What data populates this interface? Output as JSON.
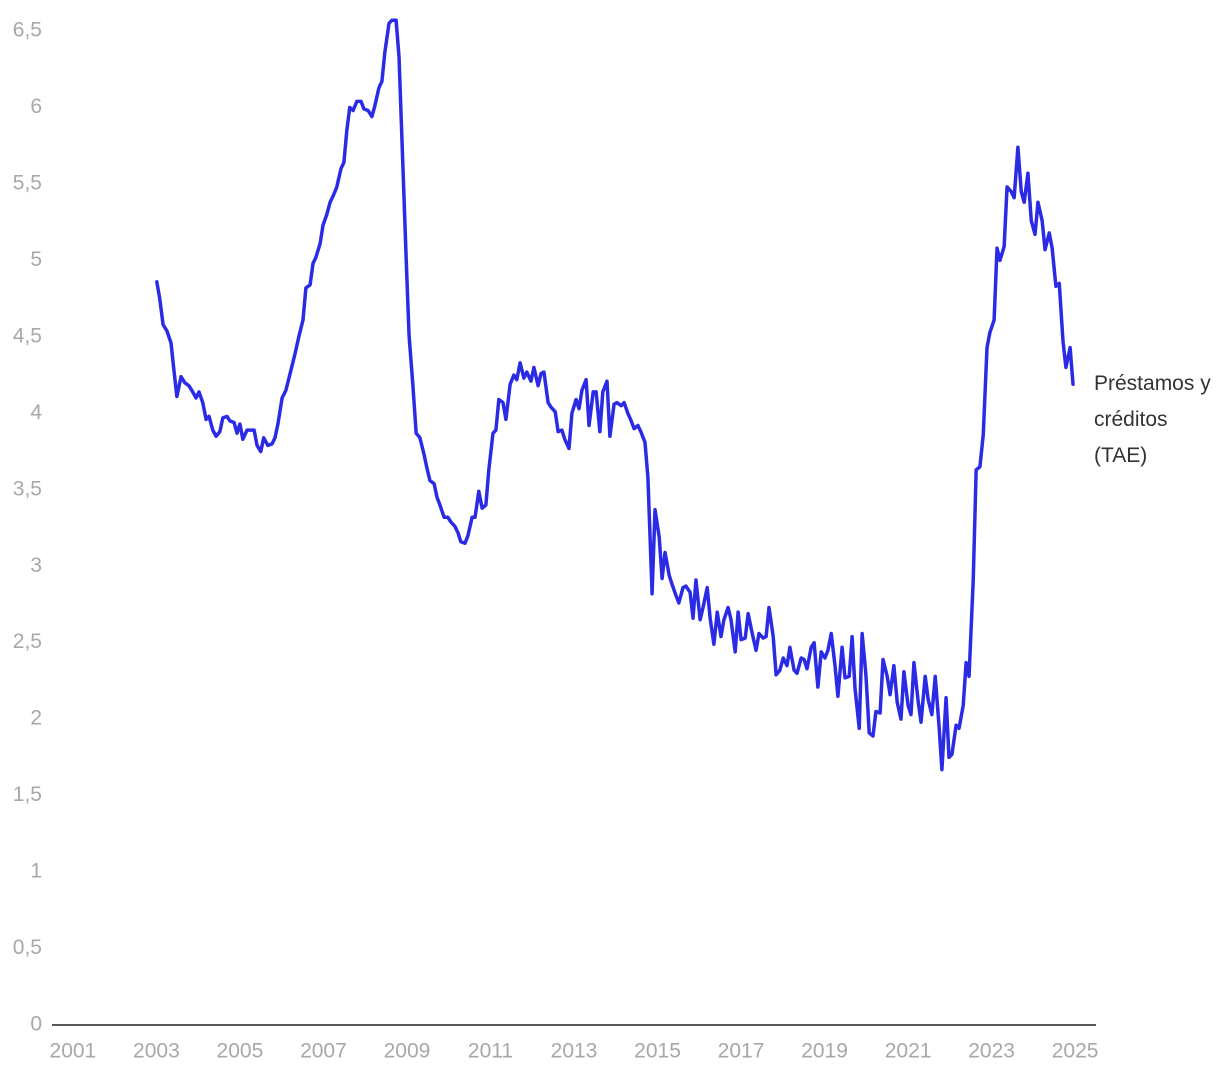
{
  "chart_data": {
    "type": "line",
    "series": [
      {
        "name": "Préstamos y créditos (TAE)",
        "color": "#2b2be6",
        "x": [
          2003.01,
          2003.08,
          2003.16,
          2003.25,
          2003.35,
          2003.42,
          2003.49,
          2003.59,
          2003.68,
          2003.78,
          2003.87,
          2003.95,
          2004.02,
          2004.11,
          2004.19,
          2004.26,
          2004.35,
          2004.43,
          2004.52,
          2004.59,
          2004.69,
          2004.76,
          2004.86,
          2004.93,
          2005.0,
          2005.07,
          2005.17,
          2005.34,
          2005.41,
          2005.5,
          2005.57,
          2005.67,
          2005.77,
          2005.84,
          2005.91,
          2006.01,
          2006.1,
          2006.22,
          2006.32,
          2006.41,
          2006.51,
          2006.58,
          2006.68,
          2006.75,
          2006.82,
          2006.92,
          2006.99,
          2007.08,
          2007.16,
          2007.23,
          2007.32,
          2007.42,
          2007.49,
          2007.56,
          2007.63,
          2007.71,
          2007.8,
          2007.9,
          2007.97,
          2008.07,
          2008.16,
          2008.23,
          2008.33,
          2008.4,
          2008.47,
          2008.57,
          2008.64,
          2008.74,
          2008.81,
          2008.88,
          2008.98,
          2009.05,
          2009.14,
          2009.22,
          2009.31,
          2009.41,
          2009.48,
          2009.55,
          2009.65,
          2009.72,
          2009.79,
          2009.89,
          2009.98,
          2010.05,
          2010.15,
          2010.22,
          2010.29,
          2010.39,
          2010.46,
          2010.56,
          2010.63,
          2010.72,
          2010.8,
          2010.89,
          2010.96,
          2011.06,
          2011.13,
          2011.2,
          2011.3,
          2011.37,
          2011.47,
          2011.56,
          2011.63,
          2011.71,
          2011.8,
          2011.87,
          2011.97,
          2012.04,
          2012.14,
          2012.21,
          2012.28,
          2012.38,
          2012.45,
          2012.55,
          2012.62,
          2012.71,
          2012.78,
          2012.88,
          2012.95,
          2013.05,
          2013.12,
          2013.19,
          2013.29,
          2013.36,
          2013.46,
          2013.53,
          2013.62,
          2013.69,
          2013.79,
          2013.86,
          2013.96,
          2014.03,
          2014.13,
          2014.2,
          2014.29,
          2014.37,
          2014.44,
          2014.53,
          2014.6,
          2014.7,
          2014.77,
          2014.87,
          2014.94,
          2015.04,
          2015.11,
          2015.18,
          2015.28,
          2015.35,
          2015.44,
          2015.51,
          2015.61,
          2015.68,
          2015.78,
          2015.85,
          2015.92,
          2016.02,
          2016.09,
          2016.19,
          2016.26,
          2016.35,
          2016.43,
          2016.52,
          2016.59,
          2016.69,
          2016.76,
          2016.86,
          2016.93,
          2017.0,
          2017.1,
          2017.17,
          2017.26,
          2017.36,
          2017.43,
          2017.53,
          2017.6,
          2017.67,
          2017.77,
          2017.84,
          2017.93,
          2018.01,
          2018.1,
          2018.17,
          2018.27,
          2018.34,
          2018.44,
          2018.51,
          2018.58,
          2018.68,
          2018.75,
          2018.84,
          2018.92,
          2019.01,
          2019.08,
          2019.16,
          2019.25,
          2019.32,
          2019.42,
          2019.49,
          2019.59,
          2019.66,
          2019.73,
          2019.83,
          2019.9,
          2019.99,
          2020.07,
          2020.16,
          2020.23,
          2020.33,
          2020.4,
          2020.5,
          2020.57,
          2020.66,
          2020.74,
          2020.83,
          2020.9,
          2021.0,
          2021.07,
          2021.14,
          2021.24,
          2021.31,
          2021.41,
          2021.48,
          2021.57,
          2021.65,
          2021.74,
          2021.81,
          2021.91,
          2021.98,
          2022.05,
          2022.15,
          2022.22,
          2022.32,
          2022.39,
          2022.46,
          2022.56,
          2022.63,
          2022.72,
          2022.8,
          2022.89,
          2022.96,
          2023.06,
          2023.13,
          2023.2,
          2023.3,
          2023.37,
          2023.47,
          2023.54,
          2023.63,
          2023.71,
          2023.78,
          2023.87,
          2023.95,
          2024.04,
          2024.11,
          2024.21,
          2024.28,
          2024.38,
          2024.45,
          2024.54,
          2024.62,
          2024.71,
          2024.78,
          2024.88,
          2024.95
        ],
        "values": [
          4.86,
          4.75,
          4.58,
          4.54,
          4.46,
          4.28,
          4.11,
          4.24,
          4.2,
          4.18,
          4.14,
          4.1,
          4.14,
          4.07,
          3.96,
          3.98,
          3.89,
          3.85,
          3.88,
          3.97,
          3.98,
          3.95,
          3.94,
          3.87,
          3.93,
          3.83,
          3.89,
          3.89,
          3.79,
          3.75,
          3.84,
          3.79,
          3.8,
          3.84,
          3.93,
          4.1,
          4.15,
          4.28,
          4.39,
          4.5,
          4.61,
          4.82,
          4.84,
          4.98,
          5.02,
          5.11,
          5.23,
          5.3,
          5.38,
          5.42,
          5.48,
          5.6,
          5.64,
          5.85,
          6.0,
          5.98,
          6.04,
          6.04,
          5.99,
          5.98,
          5.94,
          6.01,
          6.13,
          6.17,
          6.36,
          6.55,
          6.57,
          6.57,
          6.33,
          5.79,
          5.02,
          4.51,
          4.19,
          3.87,
          3.84,
          3.73,
          3.64,
          3.56,
          3.54,
          3.45,
          3.4,
          3.32,
          3.32,
          3.29,
          3.26,
          3.22,
          3.16,
          3.15,
          3.2,
          3.32,
          3.32,
          3.49,
          3.38,
          3.4,
          3.63,
          3.87,
          3.89,
          4.09,
          4.07,
          3.96,
          4.19,
          4.25,
          4.22,
          4.33,
          4.23,
          4.27,
          4.21,
          4.3,
          4.18,
          4.26,
          4.27,
          4.07,
          4.04,
          4.01,
          3.88,
          3.89,
          3.83,
          3.77,
          4.0,
          4.09,
          4.03,
          4.15,
          4.22,
          3.92,
          4.14,
          4.14,
          3.88,
          4.14,
          4.21,
          3.85,
          4.06,
          4.07,
          4.05,
          4.07,
          4.0,
          3.95,
          3.9,
          3.92,
          3.88,
          3.81,
          3.58,
          2.82,
          3.37,
          3.19,
          2.92,
          3.09,
          2.94,
          2.88,
          2.81,
          2.76,
          2.86,
          2.87,
          2.83,
          2.66,
          2.91,
          2.65,
          2.73,
          2.86,
          2.66,
          2.49,
          2.7,
          2.54,
          2.65,
          2.73,
          2.65,
          2.44,
          2.7,
          2.52,
          2.53,
          2.69,
          2.57,
          2.45,
          2.56,
          2.53,
          2.54,
          2.73,
          2.54,
          2.29,
          2.32,
          2.4,
          2.35,
          2.47,
          2.32,
          2.3,
          2.4,
          2.39,
          2.33,
          2.47,
          2.5,
          2.21,
          2.44,
          2.4,
          2.45,
          2.56,
          2.35,
          2.15,
          2.47,
          2.27,
          2.28,
          2.54,
          2.2,
          1.94,
          2.56,
          2.29,
          1.91,
          1.89,
          2.05,
          2.04,
          2.39,
          2.28,
          2.16,
          2.35,
          2.11,
          2.0,
          2.31,
          2.09,
          2.03,
          2.37,
          2.12,
          1.98,
          2.28,
          2.13,
          2.03,
          2.28,
          1.96,
          1.67,
          2.14,
          1.75,
          1.77,
          1.96,
          1.94,
          2.09,
          2.37,
          2.28,
          2.91,
          3.63,
          3.65,
          3.86,
          4.43,
          4.53,
          4.61,
          5.08,
          5.0,
          5.09,
          5.48,
          5.45,
          5.41,
          5.74,
          5.45,
          5.38,
          5.57,
          5.26,
          5.17,
          5.38,
          5.26,
          5.07,
          5.18,
          5.08,
          4.83,
          4.85,
          4.47,
          4.3,
          4.43,
          4.19
        ]
      }
    ],
    "xlim": [
      2000.5,
      2025.5
    ],
    "xticks": [
      2001,
      2003,
      2005,
      2007,
      2009,
      2011,
      2013,
      2015,
      2017,
      2019,
      2021,
      2023,
      2025
    ],
    "ylim": [
      0,
      6.5
    ],
    "yticks": [
      0,
      {
        "value": 0.5,
        "label": "0,5"
      },
      1,
      {
        "value": 1.5,
        "label": "1,5"
      },
      2,
      {
        "value": 2.5,
        "label": "2,5"
      },
      3,
      {
        "value": 3.5,
        "label": "3,5"
      },
      4,
      {
        "value": 4.5,
        "label": "4,5"
      },
      5,
      {
        "value": 5.5,
        "label": "5,5"
      },
      6,
      {
        "value": 6.5,
        "label": "6,5"
      }
    ],
    "grid": false
  }
}
